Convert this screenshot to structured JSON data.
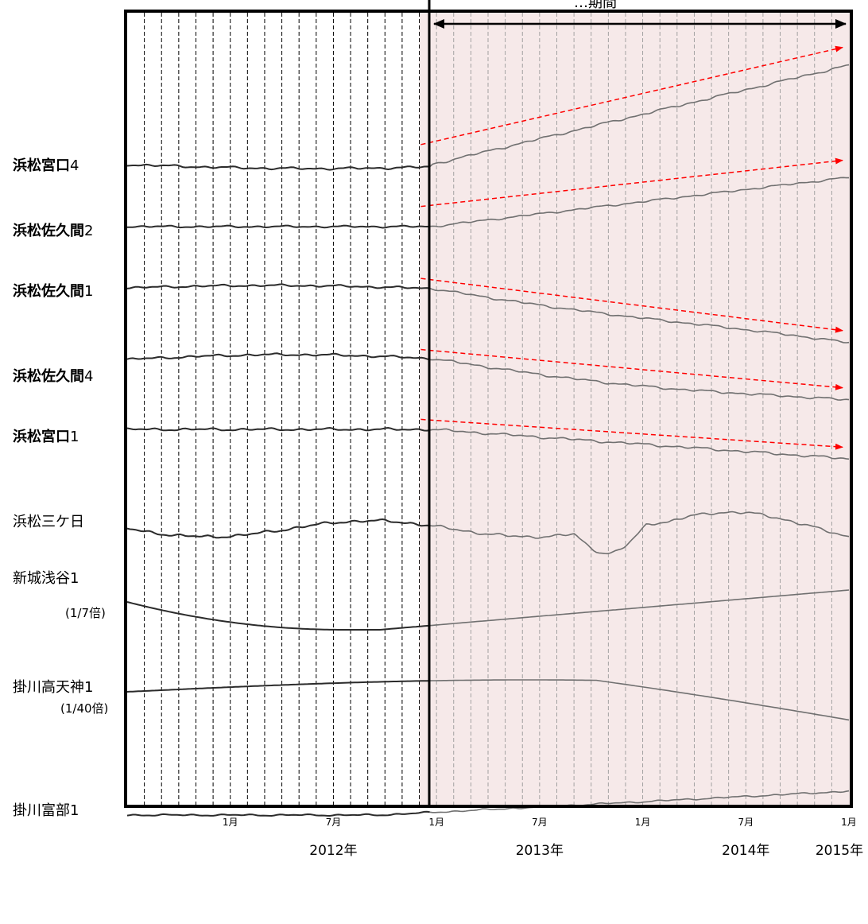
{
  "chart_data": {
    "type": "line",
    "title": "",
    "top_annotation": "…期間",
    "colors": {
      "series_line": "#2b2b2b",
      "recent_series_line": "#707070",
      "highlight_fill": "#f6e9e9",
      "trend_arrow": "#ff0000",
      "frame": "#000000"
    },
    "x_ticks": [
      {
        "month": "2012-01",
        "label": "1月"
      },
      {
        "month": "2012-07",
        "label": "7月"
      },
      {
        "month": "2013-01",
        "label": "1月"
      },
      {
        "month": "2013-07",
        "label": "7月"
      },
      {
        "month": "2014-01",
        "label": "1月"
      },
      {
        "month": "2014-07",
        "label": "7月"
      },
      {
        "month": "2015-01",
        "label": "1月"
      }
    ],
    "x_years": [
      {
        "month": "2012-07",
        "label": "2012年"
      },
      {
        "month": "2013-07",
        "label": "2013年"
      },
      {
        "month": "2014-07",
        "label": "2014年"
      },
      {
        "month": "2015-01",
        "label": "2015年"
      }
    ],
    "x_range": [
      "2011-07",
      "2015-01"
    ],
    "grid": "dashed vertical, monthly",
    "highlight_range": [
      "2012-12",
      "2015-01"
    ],
    "series": [
      {
        "name": "浜松宮口4",
        "bold_part": "浜松宮口",
        "suffix": "4",
        "bold": true,
        "trend": "up"
      },
      {
        "name": "浜松佐久間2",
        "bold_part": "浜松佐久間",
        "suffix": "2",
        "bold": true,
        "trend": "up"
      },
      {
        "name": "浜松佐久間1",
        "bold_part": "浜松佐久間",
        "suffix": "1",
        "bold": true,
        "trend": "down"
      },
      {
        "name": "浜松佐久間4",
        "bold_part": "浜松佐久間",
        "suffix": "4",
        "bold": true,
        "trend": "down"
      },
      {
        "name": "浜松宮口1",
        "bold_part": "浜松宮口",
        "suffix": "1",
        "bold": true,
        "trend": "down"
      },
      {
        "name": "浜松三ケ日",
        "bold": false,
        "trend": ""
      },
      {
        "name": "新城浅谷1",
        "bold": false,
        "scale_note": "(1/7倍)",
        "trend": ""
      },
      {
        "name": "掛川高天神1",
        "bold": false,
        "scale_note": "(1/40倍)",
        "trend": ""
      },
      {
        "name": "掛川富部1",
        "bold": false,
        "trend": ""
      }
    ]
  }
}
